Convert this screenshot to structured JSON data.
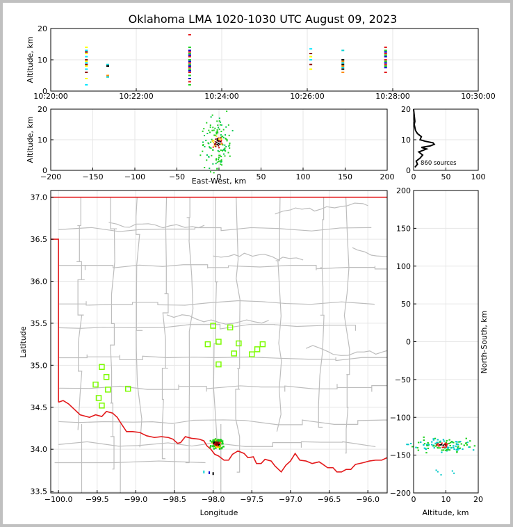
{
  "title": "Oklahoma LMA 1020-1030 UTC August 09, 2023",
  "chart_data": [
    {
      "id": "alt-time",
      "type": "scatter",
      "ylabel": "Altitude, km",
      "xlim": [
        "10:20:00",
        "10:30:00"
      ],
      "ylim": [
        0,
        20
      ],
      "x_ticks": [
        "10:20:00",
        "10:22:00",
        "10:24:00",
        "10:26:00",
        "10:28:00",
        "10:30:00"
      ],
      "y_ticks": [
        "0",
        "10",
        "20"
      ],
      "grid": true,
      "series": [
        {
          "x": "10:20:50",
          "y": [
            2,
            4,
            6,
            7,
            8,
            8.5,
            9,
            9.5,
            10,
            11,
            12,
            12.5,
            13,
            14
          ]
        },
        {
          "x": "10:21:20",
          "y": [
            4.5,
            5,
            8,
            8.5
          ]
        },
        {
          "x": "10:23:15",
          "y": [
            2,
            3,
            4,
            5,
            6,
            6.5,
            7,
            7.5,
            8,
            8.5,
            9,
            9.5,
            10,
            11,
            11.5,
            12,
            12.5,
            13,
            14,
            18
          ]
        },
        {
          "x": "10:26:05",
          "y": [
            7,
            8.5,
            10,
            11,
            12,
            13.5
          ]
        },
        {
          "x": "10:26:50",
          "y": [
            6,
            7,
            7.5,
            8,
            8.5,
            9,
            9.5,
            10,
            13
          ]
        },
        {
          "x": "10:27:50",
          "y": [
            6,
            7.5,
            8,
            8.5,
            9,
            9.5,
            10,
            11,
            11.5,
            12,
            12.5,
            13,
            14
          ]
        }
      ]
    },
    {
      "id": "alt-ew",
      "type": "scatter",
      "xlabel": "East-West, km",
      "ylabel": "Altitude, km",
      "xlim": [
        -200,
        200
      ],
      "ylim": [
        0,
        20
      ],
      "x_ticks": [
        "−200",
        "−150",
        "−100",
        "−50",
        "0",
        "50",
        "100",
        "150",
        "200"
      ],
      "y_ticks": [
        "0",
        "10",
        "20"
      ],
      "grid": true,
      "cluster": {
        "x_range": [
          -15,
          8
        ],
        "y_range": [
          2,
          15
        ],
        "center": [
          -2,
          9
        ]
      }
    },
    {
      "id": "alt-hist",
      "type": "line",
      "xlim": [
        0,
        100
      ],
      "ylim": [
        0,
        20
      ],
      "x_ticks": [
        "0",
        "50",
        "100"
      ],
      "y_ticks": [
        "0",
        "10",
        "20"
      ],
      "annotation": "860 sources",
      "grid": true,
      "x": [
        2,
        6,
        4,
        10,
        14,
        8,
        14,
        20,
        12,
        26,
        32,
        30,
        18,
        10,
        12,
        6,
        3,
        1,
        2,
        1,
        0
      ],
      "y": [
        1,
        2,
        3,
        4,
        5,
        6,
        6.5,
        7,
        7.5,
        8,
        8.5,
        9,
        9.5,
        10,
        11,
        12,
        13,
        15,
        16,
        18,
        20
      ]
    },
    {
      "id": "plan-view",
      "type": "scatter",
      "xlabel": "Longitude",
      "ylabel": "Latitude",
      "xlim": [
        -100.1,
        -95.75
      ],
      "ylim": [
        33.48,
        37.08
      ],
      "x_ticks": [
        "−100.0",
        "−99.5",
        "−99.0",
        "−98.5",
        "−98.0",
        "−97.5",
        "−97.0",
        "−96.5",
        "−96.0"
      ],
      "y_ticks": [
        "33.5",
        "34.0",
        "34.5",
        "35.0",
        "35.5",
        "36.0",
        "36.5",
        "37.0"
      ],
      "grid": true,
      "stations": [
        {
          "lon": -98.0,
          "lat": 35.47
        },
        {
          "lon": -97.78,
          "lat": 35.45
        },
        {
          "lon": -98.07,
          "lat": 35.25
        },
        {
          "lon": -97.93,
          "lat": 35.28
        },
        {
          "lon": -97.67,
          "lat": 35.26
        },
        {
          "lon": -97.36,
          "lat": 35.25
        },
        {
          "lon": -97.43,
          "lat": 35.19
        },
        {
          "lon": -97.5,
          "lat": 35.13
        },
        {
          "lon": -97.73,
          "lat": 35.14
        },
        {
          "lon": -97.93,
          "lat": 35.01
        },
        {
          "lon": -99.44,
          "lat": 34.98
        },
        {
          "lon": -99.38,
          "lat": 34.86
        },
        {
          "lon": -99.52,
          "lat": 34.77
        },
        {
          "lon": -99.36,
          "lat": 34.71
        },
        {
          "lon": -99.1,
          "lat": 34.72
        },
        {
          "lon": -99.48,
          "lat": 34.61
        },
        {
          "lon": -99.44,
          "lat": 34.52
        }
      ],
      "cluster": {
        "lon_range": [
          -98.05,
          -97.85
        ],
        "lat_range": [
          34.0,
          34.13
        ]
      },
      "minor_sources": [
        {
          "lon": -98.12,
          "lat": 33.73
        },
        {
          "lon": -98.05,
          "lat": 33.72
        },
        {
          "lon": -98.0,
          "lat": 33.71
        }
      ]
    },
    {
      "id": "alt-ns",
      "type": "scatter",
      "xlabel": "Altitude, km",
      "ylabel": "North-South, km",
      "xlim": [
        0,
        20
      ],
      "ylim": [
        -200,
        200
      ],
      "x_ticks": [
        "0",
        "10",
        "20"
      ],
      "y_ticks": [
        "−200",
        "−150",
        "−100",
        "−50",
        "0",
        "50",
        "100",
        "150",
        "200"
      ],
      "grid": true,
      "cluster": {
        "x_range": [
          2,
          16
        ],
        "y_range": [
          -145,
          -127
        ],
        "center": [
          9,
          -137
        ]
      }
    }
  ],
  "colors": {
    "frame": "#c0c0c0",
    "border": "#e31a1c",
    "county": "#bdbdbd",
    "station": "#7cfc00",
    "grid": "#e6e6e6"
  }
}
